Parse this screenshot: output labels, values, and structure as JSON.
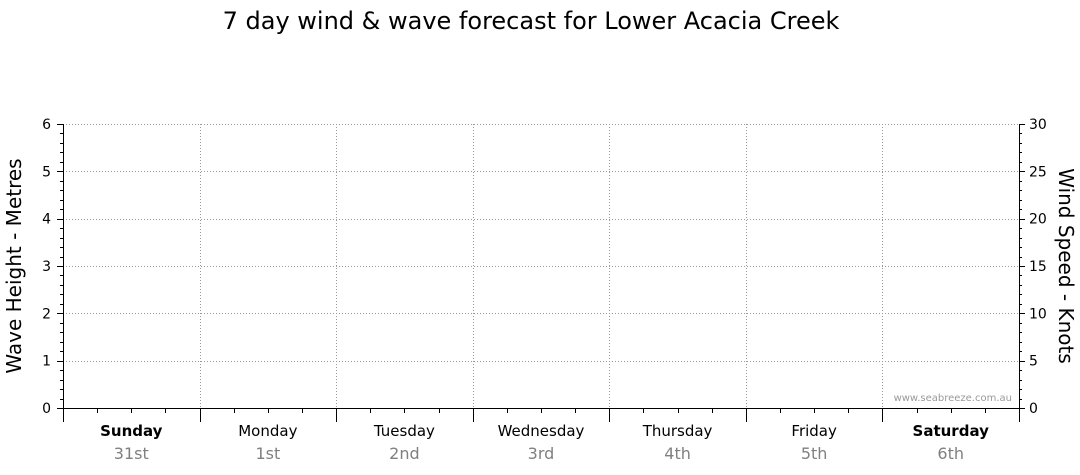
{
  "chart_data": {
    "type": "line",
    "title": "7 day wind & wave forecast for Lower Acacia Creek",
    "ylabel_left": "Wave Height - Metres",
    "ylabel_right": "Wind Speed - Knots",
    "ylim_left": [
      0,
      6
    ],
    "ylim_right": [
      0,
      30
    ],
    "yticks_left": [
      "0",
      "1",
      "2",
      "3",
      "4",
      "5",
      "6"
    ],
    "yticks_right": [
      "0",
      "5",
      "10",
      "15",
      "20",
      "25",
      "30"
    ],
    "grid": true,
    "days": [
      {
        "day": "Sunday",
        "date": "31st",
        "bold": true
      },
      {
        "day": "Monday",
        "date": "1st",
        "bold": false
      },
      {
        "day": "Tuesday",
        "date": "2nd",
        "bold": false
      },
      {
        "day": "Wednesday",
        "date": "3rd",
        "bold": false
      },
      {
        "day": "Thursday",
        "date": "4th",
        "bold": false
      },
      {
        "day": "Friday",
        "date": "5th",
        "bold": false
      },
      {
        "day": "Saturday",
        "date": "6th",
        "bold": true
      }
    ],
    "series": []
  },
  "watermark": "www.seabreeze.com.au",
  "colors": {
    "grid": "#999999",
    "axis": "#000000",
    "date": "#808080",
    "watermark": "#9a9a9a"
  }
}
